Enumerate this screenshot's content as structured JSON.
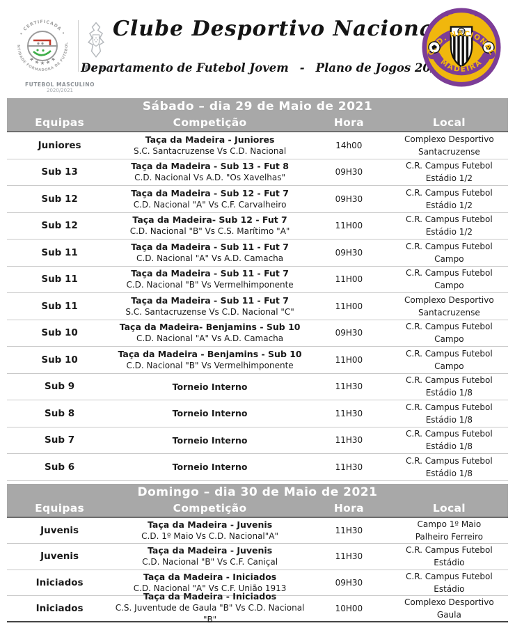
{
  "header": {
    "title": "Clube Desportivo Nacional",
    "subtitle_left": "Departamento de Futebol Jovem",
    "subtitle_sep": "-",
    "subtitle_right": "Plano de Jogos 20/21",
    "cert_logo": {
      "ring_top": "• CERTIFICADA •",
      "ring_bottom": "ENTIDADE FORMADORA DE FUTEBOL",
      "stars": "★ ★ ★ ★ ★",
      "fpf_label": "FPF",
      "caption_line1": "FUTEBOL MASCULINO",
      "caption_line2": "2020/2021"
    },
    "club_badge": {
      "top_text": "C. D. NACIONAL",
      "bottom_text": "MADEIRA"
    }
  },
  "colors": {
    "band_gray": "#a8a8a8",
    "badge_yellow": "#f0b70d",
    "badge_purple": "#7c3d97"
  },
  "columns": [
    "Equipas",
    "Competição",
    "Hora",
    "Local"
  ],
  "tables": [
    {
      "title": "Sábado – dia 29 de Maio de 2021",
      "rows": [
        {
          "equipa": "Juniores",
          "comp1": "Taça da Madeira - Juniores",
          "comp2": "S.C. Santacruzense Vs C.D. Nacional",
          "hora": "14h00",
          "local1": "Complexo Desportivo",
          "local2": "Santacruzense"
        },
        {
          "equipa": "Sub 13",
          "comp1": "Taça da Madeira - Sub 13 - Fut 8",
          "comp2": "C.D. Nacional Vs A.D. \"Os Xavelhas\"",
          "hora": "09H30",
          "local1": "C.R. Campus Futebol",
          "local2": "Estádio 1/2"
        },
        {
          "equipa": "Sub 12",
          "comp1": "Taça da Madeira - Sub 12 - Fut 7",
          "comp2": "C.D. Nacional \"A\" Vs C.F. Carvalheiro",
          "hora": "09H30",
          "local1": "C.R. Campus Futebol",
          "local2": "Estádio 1/2"
        },
        {
          "equipa": "Sub 12",
          "comp1": "Taça da Madeira- Sub 12 - Fut 7",
          "comp2": "C.D. Nacional \"B\" Vs C.S. Marítimo \"A\"",
          "hora": "11H00",
          "local1": "C.R. Campus Futebol",
          "local2": "Estádio 1/2"
        },
        {
          "equipa": "Sub 11",
          "comp1": "Taça da Madeira - Sub 11 - Fut 7",
          "comp2": "C.D. Nacional \"A\" Vs A.D. Camacha",
          "hora": "09H30",
          "local1": "C.R. Campus Futebol",
          "local2": "Campo"
        },
        {
          "equipa": "Sub 11",
          "comp1": "Taça da Madeira - Sub 11 - Fut 7",
          "comp2": "C.D. Nacional \"B\" Vs Vermelhimponente",
          "hora": "11H00",
          "local1": "C.R. Campus Futebol",
          "local2": "Campo"
        },
        {
          "equipa": "Sub 11",
          "comp1": "Taça da Madeira - Sub 11 - Fut 7",
          "comp2": "S.C. Santacruzense Vs C.D. Nacional \"C\"",
          "hora": "11H00",
          "local1": "Complexo Desportivo",
          "local2": "Santacruzense"
        },
        {
          "equipa": "Sub 10",
          "comp1": "Taça da Madeira- Benjamins - Sub 10",
          "comp2": "C.D. Nacional \"A\" Vs A.D. Camacha",
          "hora": "09H30",
          "local1": "C.R. Campus Futebol",
          "local2": "Campo"
        },
        {
          "equipa": "Sub 10",
          "comp1": "Taça da Madeira - Benjamins - Sub 10",
          "comp2": "C.D. Nacional \"B\" Vs Vermelhimponente",
          "hora": "11H00",
          "local1": "C.R. Campus Futebol",
          "local2": "Campo"
        },
        {
          "equipa": "Sub 9",
          "comp1": "Torneio Interno",
          "comp2": "",
          "hora": "11H30",
          "local1": "C.R. Campus Futebol",
          "local2": "Estádio 1/8"
        },
        {
          "equipa": "Sub 8",
          "comp1": "Torneio Interno",
          "comp2": "",
          "hora": "11H30",
          "local1": "C.R. Campus Futebol",
          "local2": "Estádio 1/8"
        },
        {
          "equipa": "Sub 7",
          "comp1": "Torneio Interno",
          "comp2": "",
          "hora": "11H30",
          "local1": "C.R. Campus Futebol",
          "local2": "Estádio 1/8"
        },
        {
          "equipa": "Sub 6",
          "comp1": "Torneio Interno",
          "comp2": "",
          "hora": "11H30",
          "local1": "C.R. Campus Futebol",
          "local2": "Estádio 1/8"
        }
      ]
    },
    {
      "title": "Domingo – dia 30 de Maio de 2021",
      "rows": [
        {
          "equipa": "Juvenis",
          "comp1": "Taça da Madeira - Juvenis",
          "comp2": "C.D. 1º Maio Vs C.D. Nacional\"A\"",
          "hora": "11H30",
          "local1": "Campo 1º Maio",
          "local2": "Palheiro Ferreiro"
        },
        {
          "equipa": "Juvenis",
          "comp1": "Taça da Madeira - Juvenis",
          "comp2": "C.D. Nacional \"B\" Vs C.F. Caniçal",
          "hora": "11H30",
          "local1": "C.R. Campus Futebol",
          "local2": "Estádio"
        },
        {
          "equipa": "Iniciados",
          "comp1": "Taça da Madeira - Iniciados",
          "comp2": "C.D. Nacional \"A\" Vs C.F. União 1913",
          "hora": "09H30",
          "local1": "C.R. Campus Futebol",
          "local2": "Estádio"
        },
        {
          "equipa": "Iniciados",
          "comp1": "Taça da Madeira - Iniciados",
          "comp2": "C.S. Juventude de Gaula \"B\" Vs C.D. Nacional \"B\"",
          "hora": "10H00",
          "local1": "Complexo Desportivo",
          "local2": "Gaula"
        }
      ]
    }
  ]
}
